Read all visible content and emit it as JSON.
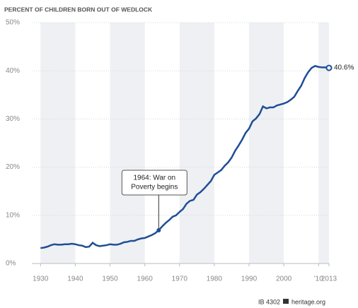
{
  "chart_data": {
    "type": "line",
    "title": "PERCENT OF CHILDREN BORN OUT OF WEDLOCK",
    "x": [
      1930,
      1931,
      1932,
      1933,
      1934,
      1935,
      1936,
      1937,
      1938,
      1939,
      1940,
      1941,
      1942,
      1943,
      1944,
      1945,
      1946,
      1947,
      1948,
      1949,
      1950,
      1951,
      1952,
      1953,
      1954,
      1955,
      1956,
      1957,
      1958,
      1959,
      1960,
      1961,
      1962,
      1963,
      1964,
      1965,
      1966,
      1967,
      1968,
      1969,
      1970,
      1971,
      1972,
      1973,
      1974,
      1975,
      1976,
      1977,
      1978,
      1979,
      1980,
      1981,
      1982,
      1983,
      1984,
      1985,
      1986,
      1987,
      1988,
      1989,
      1990,
      1991,
      1992,
      1993,
      1994,
      1995,
      1996,
      1997,
      1998,
      1999,
      2000,
      2001,
      2002,
      2003,
      2004,
      2005,
      2006,
      2007,
      2008,
      2009,
      2010,
      2011,
      2012,
      2013
    ],
    "series": [
      {
        "name": "Percent of children born out of wedlock",
        "color": "#1f4e96",
        "values": [
          3.2,
          3.3,
          3.5,
          3.8,
          4.0,
          3.9,
          3.9,
          4.0,
          4.0,
          4.1,
          4.0,
          3.8,
          3.7,
          3.4,
          3.5,
          4.3,
          3.8,
          3.6,
          3.7,
          3.8,
          4.0,
          3.9,
          3.9,
          4.1,
          4.4,
          4.5,
          4.7,
          4.7,
          5.0,
          5.2,
          5.3,
          5.6,
          5.9,
          6.3,
          6.9,
          7.7,
          8.4,
          9.0,
          9.7,
          10.0,
          10.7,
          11.3,
          12.4,
          13.0,
          13.2,
          14.3,
          14.8,
          15.5,
          16.3,
          17.1,
          18.4,
          18.9,
          19.4,
          20.3,
          21.0,
          22.0,
          23.4,
          24.5,
          25.7,
          27.1,
          28.0,
          29.5,
          30.1,
          31.0,
          32.6,
          32.2,
          32.4,
          32.4,
          32.8,
          33.0,
          33.2,
          33.5,
          34.0,
          34.6,
          35.8,
          36.9,
          38.5,
          39.7,
          40.6,
          41.0,
          40.8,
          40.7,
          40.7,
          40.6
        ],
        "value_labels": [
          null,
          null,
          null,
          null,
          null,
          null,
          null,
          null,
          null,
          null,
          null,
          null,
          null,
          null,
          null,
          null,
          null,
          null,
          null,
          null,
          null,
          null,
          null,
          null,
          null,
          null,
          null,
          null,
          null,
          null,
          null,
          null,
          null,
          null,
          null,
          null,
          null,
          null,
          null,
          null,
          null,
          null,
          null,
          null,
          null,
          null,
          null,
          null,
          null,
          null,
          null,
          null,
          null,
          null,
          null,
          null,
          null,
          null,
          null,
          null,
          null,
          null,
          null,
          null,
          null,
          null,
          null,
          null,
          null,
          null,
          null,
          null,
          null,
          null,
          null,
          null,
          null,
          null,
          null,
          null,
          null,
          null,
          null,
          "40.6%"
        ]
      }
    ],
    "xlim": [
      1927.5,
      2013
    ],
    "xticks": [
      1930,
      1940,
      1950,
      1960,
      1970,
      1980,
      1990,
      2000,
      {
        "value": 2010,
        "label": "'10"
      },
      2013
    ],
    "ylim": [
      0,
      50
    ],
    "yticks": [
      {
        "value": 0,
        "label": "0%"
      },
      {
        "value": 10,
        "label": "10%"
      },
      {
        "value": 20,
        "label": "20%"
      },
      {
        "value": 30,
        "label": "30%"
      },
      {
        "value": 40,
        "label": "40%"
      },
      {
        "value": 50,
        "label": "50%"
      }
    ],
    "grid": true,
    "annotations": [
      {
        "x": 1964,
        "lines": [
          "1964: War on",
          "Poverty begins"
        ]
      }
    ],
    "source": "IB 4302",
    "credit": "heritage.org"
  }
}
